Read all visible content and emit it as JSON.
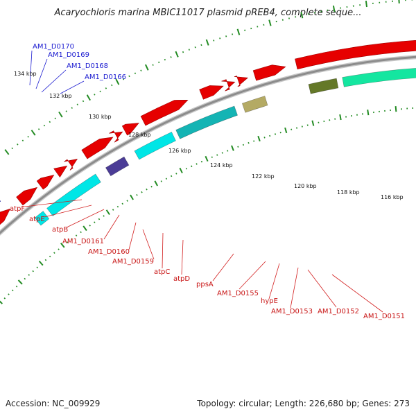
{
  "title": "Acaryochloris marina MBIC11017 plasmid pREB4, complete seque...",
  "footer": {
    "accession": "Accession: NC_009929",
    "topology": "Topology: circular; Length: 226,680 bp; Genes: 273"
  },
  "colors": {
    "backbone": "#8c8c8c",
    "tick": "#228b22",
    "forward_gene": "#e60000",
    "reverse_gene_blue": "#0a14e6",
    "cyan_gene": "#00e6e6",
    "teal_gene": "#14b4b4",
    "purple_gene": "#4b3c96",
    "khaki_gene": "#b4aa64",
    "olive_gene": "#647828",
    "spring_gene": "#14e6a0",
    "blue_label": "#1a1ad0",
    "red_label": "#c81414"
  },
  "kbp_labels": [
    "134 kbp",
    "132 kbp",
    "130 kbp",
    "128 kbp",
    "126 kbp",
    "124 kbp",
    "122 kbp",
    "120 kbp",
    "118 kbp",
    "116 kbp"
  ],
  "top_genes": [
    "AM1_D0170",
    "AM1_D0169",
    "AM1_D0168",
    "AM1_D0166"
  ],
  "bottom_genes": [
    "atpF",
    "atpE",
    "atpB",
    "AM1_D0161",
    "AM1_D0160",
    "AM1_D0159",
    "atpC",
    "atpD",
    "ppsA",
    "AM1_D0155",
    "hypE",
    "AM1_D0153",
    "AM1_D0152",
    "AM1_D0151"
  ]
}
